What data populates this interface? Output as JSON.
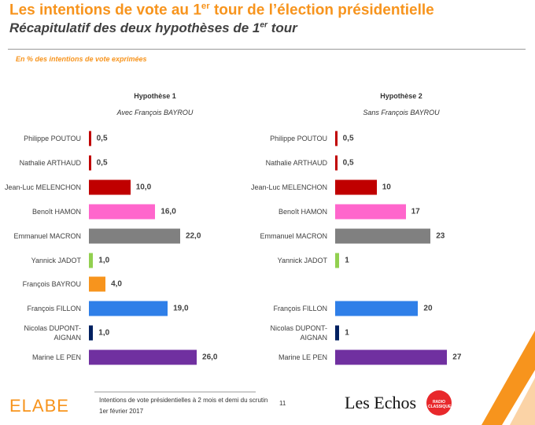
{
  "header": {
    "title": [
      "Les intentions de vote au 1",
      "er",
      " tour de l’élection présidentielle"
    ],
    "subtitle": [
      "Récapitulatif des deux hypothèses de 1",
      "er",
      " tour"
    ],
    "note": "En % des intentions de vote exprimées"
  },
  "chart_data": [
    {
      "type": "bar",
      "title": "Hypothèse 1",
      "subtitle": "Avec François BAYROU",
      "categories": [
        "Philippe POUTOU",
        "Nathalie ARTHAUD",
        "Jean-Luc MELENCHON",
        "Benoît HAMON",
        "Emmanuel MACRON",
        "Yannick JADOT",
        "François BAYROU",
        "François FILLON",
        "Nicolas DUPONT-AIGNAN",
        "Marine LE PEN"
      ],
      "values": [
        0.5,
        0.5,
        10,
        16,
        22,
        1,
        4,
        19,
        1,
        26
      ],
      "value_labels": [
        "0,5",
        "0,5",
        "10,0",
        "16,0",
        "22,0",
        "1,0",
        "4,0",
        "19,0",
        "1,0",
        "26,0"
      ],
      "colors": [
        "#c00000",
        "#c00000",
        "#c00000",
        "#ff66cc",
        "#808080",
        "#92d050",
        "#f7941d",
        "#2f7fe8",
        "#002060",
        "#7030a0"
      ]
    },
    {
      "type": "bar",
      "title": "Hypothèse 2",
      "subtitle": "Sans François BAYROU",
      "categories": [
        "Philippe POUTOU",
        "Nathalie ARTHAUD",
        "Jean-Luc MELENCHON",
        "Benoît HAMON",
        "Emmanuel MACRON",
        "Yannick JADOT",
        null,
        "François FILLON",
        "Nicolas DUPONT-AIGNAN",
        "Marine LE PEN"
      ],
      "values": [
        0.5,
        0.5,
        10,
        17,
        23,
        1,
        null,
        20,
        1,
        27
      ],
      "value_labels": [
        "0,5",
        "0,5",
        "10",
        "17",
        "23",
        "1",
        null,
        "20",
        "1",
        "27"
      ],
      "colors": [
        "#c00000",
        "#c00000",
        "#c00000",
        "#ff66cc",
        "#808080",
        "#92d050",
        null,
        "#2f7fe8",
        "#002060",
        "#7030a0"
      ]
    }
  ],
  "footer": {
    "logo": "ELABE",
    "source": "Intentions de vote présidentielles à 2 mois et demi du scrutin",
    "date": "1er février 2017",
    "page": "11",
    "partner": "Les Echos",
    "radio": "RADIO CLASSIQUE"
  }
}
